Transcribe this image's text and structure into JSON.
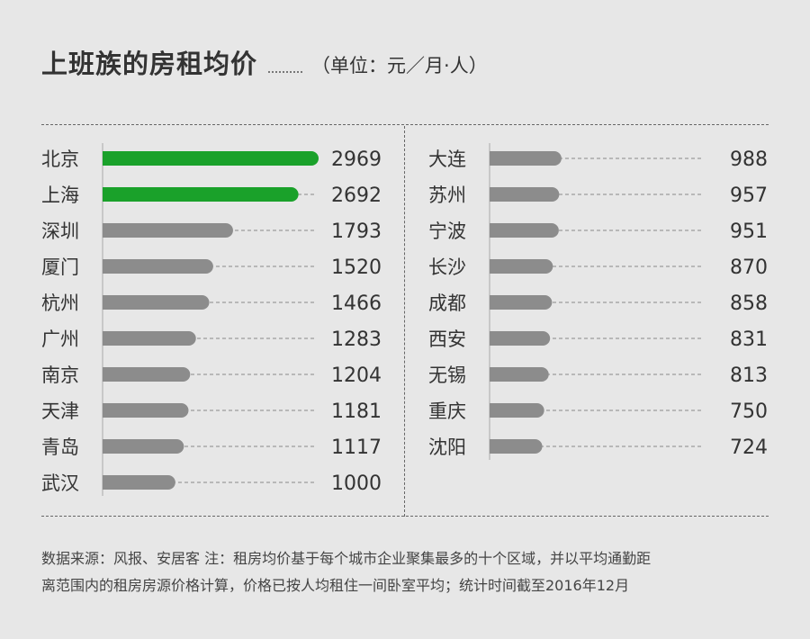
{
  "title": "上班族的房租均价",
  "unit": "（单位：元／月·人）",
  "chart_data": {
    "type": "bar",
    "panels": [
      {
        "categories": [
          "北京",
          "上海",
          "深圳",
          "厦门",
          "杭州",
          "广州",
          "南京",
          "天津",
          "青岛",
          "武汉"
        ],
        "values": [
          2969,
          2692,
          1793,
          1520,
          1466,
          1283,
          1204,
          1181,
          1117,
          1000
        ],
        "highlight": [
          0,
          1
        ]
      },
      {
        "categories": [
          "大连",
          "苏州",
          "宁波",
          "长沙",
          "成都",
          "西安",
          "无锡",
          "重庆",
          "沈阳"
        ],
        "values": [
          988,
          957,
          951,
          870,
          858,
          831,
          813,
          750,
          724
        ],
        "highlight": []
      }
    ],
    "xlim": [
      0,
      2969
    ],
    "colors": {
      "highlight": "#1aa12a",
      "default": "#8c8c8c"
    }
  },
  "footer": {
    "line1": "数据来源：风报、安居客  注：租房均价基于每个城市企业聚集最多的十个区域，并以平均通勤距",
    "line2": "离范围内的租房房源价格计算，价格已按人均租住一间卧室平均；统计时间截至2016年12月"
  }
}
